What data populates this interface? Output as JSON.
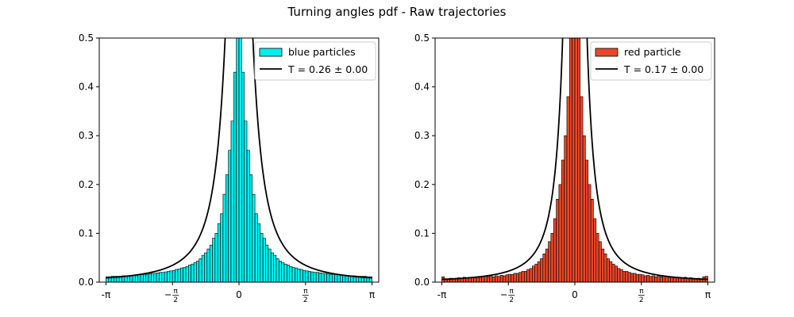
{
  "figure": {
    "title": "Turning angles pdf - Raw trajectories",
    "colors": {
      "blue_fill": "#00eeee",
      "red_fill": "#e8472a",
      "edge": "#000000",
      "fit": "#000000"
    }
  },
  "chart_data": [
    {
      "type": "bar",
      "name": "left",
      "ylim": [
        0,
        0.5
      ],
      "xlim": [
        -3.3,
        3.3
      ],
      "yticks": [
        "0.0",
        "0.1",
        "0.2",
        "0.3",
        "0.4",
        "0.5"
      ],
      "xticks": [
        {
          "value": -3.14159,
          "label": "-π"
        },
        {
          "value": -1.5708,
          "label": "-π/2"
        },
        {
          "value": 0,
          "label": "0"
        },
        {
          "value": 1.5708,
          "label": "π/2"
        },
        {
          "value": 3.14159,
          "label": "π"
        }
      ],
      "fill": "#00eeee",
      "legend": [
        "blue particles",
        "T = 0.26 ± 0.00"
      ],
      "fit_T": 0.26,
      "bins": 100,
      "bar_values": [
        0.011,
        0.011,
        0.012,
        0.012,
        0.012,
        0.012,
        0.013,
        0.013,
        0.013,
        0.014,
        0.014,
        0.015,
        0.015,
        0.016,
        0.016,
        0.016,
        0.017,
        0.018,
        0.018,
        0.019,
        0.02,
        0.02,
        0.021,
        0.022,
        0.023,
        0.024,
        0.026,
        0.027,
        0.029,
        0.03,
        0.032,
        0.035,
        0.037,
        0.04,
        0.043,
        0.048,
        0.055,
        0.06,
        0.068,
        0.076,
        0.09,
        0.1,
        0.12,
        0.14,
        0.18,
        0.22,
        0.27,
        0.33,
        0.43,
        0.58,
        0.6,
        0.43,
        0.33,
        0.27,
        0.22,
        0.18,
        0.14,
        0.12,
        0.1,
        0.09,
        0.076,
        0.068,
        0.06,
        0.055,
        0.048,
        0.043,
        0.04,
        0.037,
        0.035,
        0.032,
        0.03,
        0.029,
        0.027,
        0.026,
        0.024,
        0.023,
        0.022,
        0.021,
        0.02,
        0.02,
        0.019,
        0.018,
        0.018,
        0.017,
        0.016,
        0.016,
        0.016,
        0.015,
        0.015,
        0.014,
        0.014,
        0.013,
        0.013,
        0.013,
        0.012,
        0.012,
        0.012,
        0.012,
        0.011,
        0.011
      ]
    },
    {
      "type": "bar",
      "name": "right",
      "ylim": [
        0,
        0.5
      ],
      "xlim": [
        -3.3,
        3.3
      ],
      "yticks": [
        "0.0",
        "0.1",
        "0.2",
        "0.3",
        "0.4",
        "0.5"
      ],
      "xticks": [
        {
          "value": -3.14159,
          "label": "-π"
        },
        {
          "value": -1.5708,
          "label": "-π/2"
        },
        {
          "value": 0,
          "label": "0"
        },
        {
          "value": 1.5708,
          "label": "π/2"
        },
        {
          "value": 3.14159,
          "label": "π"
        }
      ],
      "fill": "#e8472a",
      "legend": [
        "red particle",
        "T = 0.17 ± 0.00"
      ],
      "fit_T": 0.17,
      "bins": 100,
      "bar_values": [
        0.011,
        0.007,
        0.007,
        0.008,
        0.007,
        0.008,
        0.009,
        0.008,
        0.01,
        0.009,
        0.01,
        0.01,
        0.009,
        0.011,
        0.01,
        0.011,
        0.012,
        0.011,
        0.012,
        0.011,
        0.013,
        0.012,
        0.014,
        0.013,
        0.015,
        0.016,
        0.016,
        0.018,
        0.018,
        0.02,
        0.022,
        0.022,
        0.026,
        0.028,
        0.033,
        0.037,
        0.042,
        0.048,
        0.058,
        0.068,
        0.083,
        0.1,
        0.13,
        0.17,
        0.2,
        0.25,
        0.3,
        0.38,
        0.5,
        0.6,
        0.6,
        0.5,
        0.38,
        0.3,
        0.25,
        0.2,
        0.17,
        0.13,
        0.1,
        0.083,
        0.068,
        0.058,
        0.048,
        0.042,
        0.037,
        0.033,
        0.028,
        0.026,
        0.022,
        0.022,
        0.02,
        0.018,
        0.018,
        0.016,
        0.016,
        0.015,
        0.013,
        0.014,
        0.012,
        0.013,
        0.011,
        0.012,
        0.011,
        0.012,
        0.011,
        0.01,
        0.011,
        0.009,
        0.01,
        0.01,
        0.009,
        0.01,
        0.008,
        0.009,
        0.008,
        0.007,
        0.008,
        0.007,
        0.011,
        0.012
      ]
    }
  ]
}
